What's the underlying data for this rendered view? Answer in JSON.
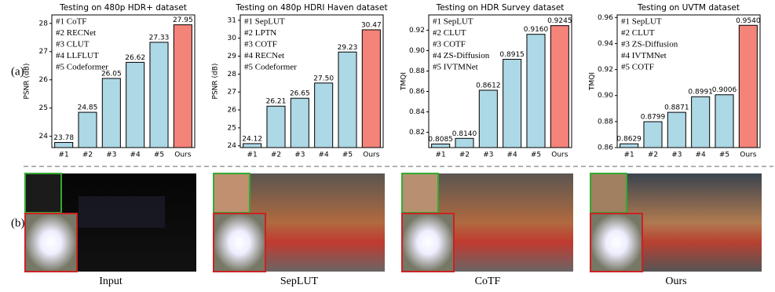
{
  "panel_labels": [
    "(a)",
    "(b)"
  ],
  "chart_data": [
    {
      "type": "bar",
      "title": "Testing on 480p HDR+ dataset",
      "y_label": "PSNR (dB)",
      "categories": [
        "#1",
        "#2",
        "#3",
        "#4",
        "#5",
        "Ours"
      ],
      "values": [
        23.78,
        24.85,
        26.05,
        26.62,
        27.33,
        27.95
      ],
      "colors": [
        "#add8e6",
        "#add8e6",
        "#add8e6",
        "#add8e6",
        "#add8e6",
        "#f4837a"
      ],
      "annotations": [
        "#1 CoTF",
        "#2 RECNet",
        "#3 CLUT",
        "#4 LLFLUT",
        "#5 Codeformer"
      ],
      "ylim": [
        23.6,
        28.3
      ],
      "yticks": [
        24,
        25,
        26,
        27,
        28
      ]
    },
    {
      "type": "bar",
      "title": "Testing on 480p HDRI Haven dataset",
      "y_label": "PSNR (dB)",
      "categories": [
        "#1",
        "#2",
        "#3",
        "#4",
        "#5",
        "Ours"
      ],
      "values": [
        24.12,
        26.21,
        26.65,
        27.5,
        29.23,
        30.47
      ],
      "value_labels": [
        "24.12",
        "26.21",
        "26.65",
        "27.50",
        "29.23",
        "30.47"
      ],
      "colors": [
        "#add8e6",
        "#add8e6",
        "#add8e6",
        "#add8e6",
        "#add8e6",
        "#f4837a"
      ],
      "annotations": [
        "#1 SepLUT",
        "#2 LPTN",
        "#3 COTF",
        "#4 RECNet",
        "#5 Codeformer"
      ],
      "ylim": [
        23.9,
        31.3
      ],
      "yticks": [
        24,
        25,
        26,
        27,
        28,
        29,
        30,
        31
      ]
    },
    {
      "type": "bar",
      "title": "Testing on HDR Survey dataset",
      "y_label": "TMQI",
      "categories": [
        "#1",
        "#2",
        "#3",
        "#4",
        "#5",
        "Ours"
      ],
      "values": [
        0.8085,
        0.814,
        0.8612,
        0.8915,
        0.916,
        0.9245
      ],
      "value_labels": [
        "0.8085",
        "0.8140",
        "0.8612",
        "0.8915",
        "0.9160",
        "0.9245"
      ],
      "colors": [
        "#add8e6",
        "#add8e6",
        "#add8e6",
        "#add8e6",
        "#add8e6",
        "#f4837a"
      ],
      "annotations": [
        "#1 SepLUT",
        "#2 CLUT",
        "#3 COTF",
        "#4 ZS-Diffusion",
        "#5 IVTMNet"
      ],
      "ylim": [
        0.805,
        0.935
      ],
      "yticks": [
        0.82,
        0.84,
        0.86,
        0.88,
        {
          "value": 0.9,
          "label": "0.90"
        },
        0.92
      ]
    },
    {
      "type": "bar",
      "title": "Testing on UVTM dataset",
      "y_label": "TMQI",
      "categories": [
        "#1",
        "#2",
        "#3",
        "#4",
        "#5",
        "Ours"
      ],
      "values": [
        0.8629,
        0.8799,
        0.8871,
        0.8991,
        0.9006,
        0.954
      ],
      "value_labels": [
        "0.8629",
        "0.8799",
        "0.8871",
        "0.8991",
        "0.9006",
        "0.9540"
      ],
      "colors": [
        "#add8e6",
        "#add8e6",
        "#add8e6",
        "#add8e6",
        "#add8e6",
        "#f4837a"
      ],
      "annotations": [
        "#1 SepLUT",
        "#2 CLUT",
        "#3 ZS-Diffusion",
        "#4 IVTMNet",
        "#5 COTF"
      ],
      "ylim": [
        0.86,
        0.962
      ],
      "yticks": [
        0.86,
        0.88,
        {
          "value": 0.9,
          "label": "0.90"
        },
        0.92,
        0.94,
        0.96
      ]
    }
  ],
  "images": [
    {
      "caption": "Input"
    },
    {
      "caption": "SepLUT"
    },
    {
      "caption": "CoTF"
    },
    {
      "caption": "Ours"
    }
  ]
}
